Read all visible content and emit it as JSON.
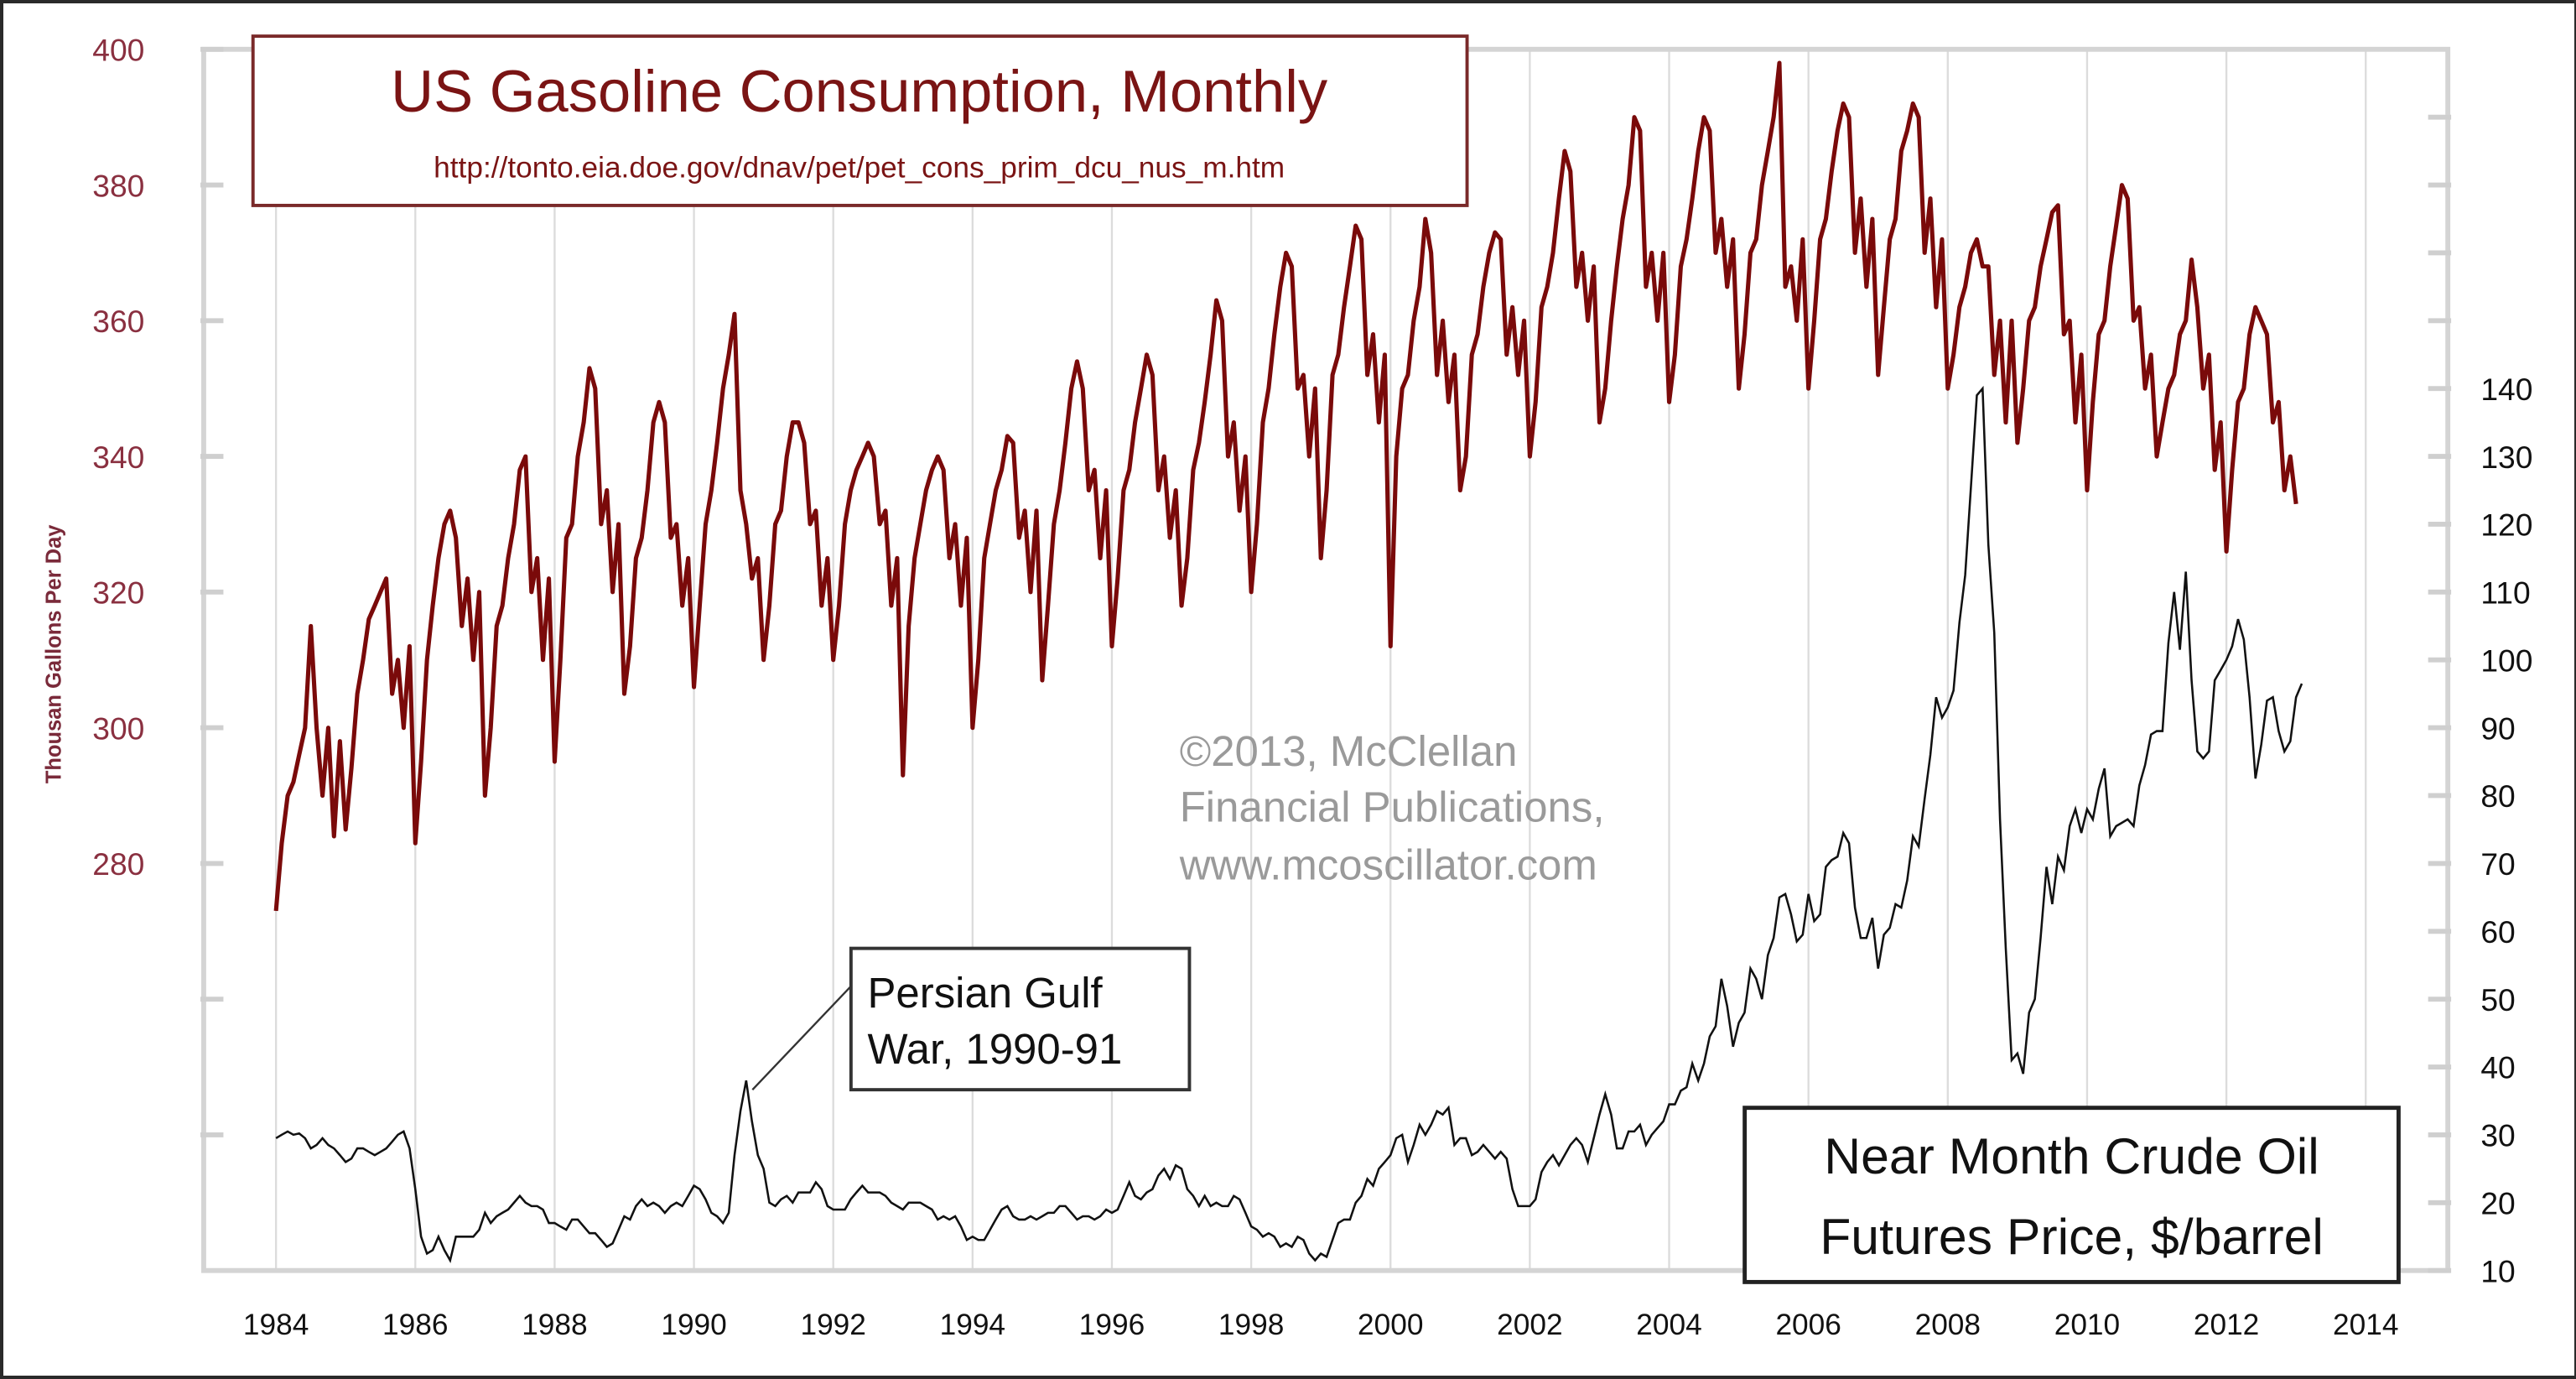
{
  "chart_data": [
    {
      "type": "line",
      "title": "US Gasoline Consumption, Monthly",
      "subtitle": "http://tonto.eia.doe.gov/dnav/pet/pet_cons_prim_dcu_nus_m.htm",
      "ylabel": "Thousan Gallons Per Day",
      "xlabel": "",
      "axis": "left",
      "ylim": [
        220,
        400
      ],
      "yticks": [
        "400",
        "380",
        "360",
        "340",
        "320",
        "300",
        "280"
      ],
      "xlim": [
        1983,
        2015
      ],
      "xticks": [
        "1984",
        "1986",
        "1988",
        "1990",
        "1992",
        "1994",
        "1996",
        "1998",
        "2000",
        "2002",
        "2004",
        "2006",
        "2008",
        "2010",
        "2012",
        "2014"
      ],
      "grid": "vertical",
      "color": "#7a0a0a",
      "start": "1984-01",
      "frequency": "monthly",
      "values": [
        273,
        283,
        290,
        292,
        296,
        300,
        315,
        300,
        290,
        300,
        284,
        298,
        285,
        294,
        305,
        310,
        316,
        318,
        320,
        322,
        305,
        310,
        300,
        312,
        283,
        295,
        310,
        318,
        325,
        330,
        332,
        328,
        315,
        322,
        310,
        320,
        290,
        300,
        315,
        318,
        325,
        330,
        338,
        340,
        320,
        325,
        310,
        322,
        295,
        310,
        328,
        330,
        340,
        345,
        353,
        350,
        330,
        335,
        320,
        330,
        305,
        312,
        325,
        328,
        335,
        345,
        348,
        345,
        328,
        330,
        318,
        325,
        306,
        318,
        330,
        335,
        342,
        350,
        355,
        361,
        335,
        330,
        322,
        325,
        310,
        318,
        330,
        332,
        340,
        345,
        345,
        342,
        330,
        332,
        318,
        325,
        310,
        318,
        330,
        335,
        338,
        340,
        342,
        340,
        330,
        332,
        318,
        325,
        293,
        315,
        325,
        330,
        335,
        338,
        340,
        338,
        325,
        330,
        318,
        328,
        300,
        310,
        325,
        330,
        335,
        338,
        343,
        342,
        328,
        332,
        320,
        332,
        307,
        318,
        330,
        335,
        342,
        350,
        354,
        350,
        335,
        338,
        325,
        335,
        312,
        322,
        335,
        338,
        345,
        350,
        355,
        352,
        335,
        340,
        328,
        335,
        318,
        325,
        338,
        342,
        348,
        355,
        363,
        360,
        340,
        345,
        332,
        340,
        320,
        330,
        345,
        350,
        358,
        365,
        370,
        368,
        350,
        352,
        340,
        350,
        325,
        335,
        352,
        355,
        362,
        368,
        374,
        372,
        352,
        358,
        345,
        355,
        312,
        340,
        350,
        352,
        360,
        365,
        375,
        370,
        352,
        360,
        348,
        355,
        335,
        340,
        355,
        358,
        365,
        370,
        373,
        372,
        355,
        362,
        352,
        360,
        340,
        348,
        362,
        365,
        370,
        378,
        385,
        382,
        365,
        370,
        360,
        368,
        345,
        350,
        360,
        368,
        375,
        380,
        390,
        388,
        365,
        370,
        360,
        370,
        348,
        355,
        368,
        372,
        378,
        385,
        390,
        388,
        370,
        375,
        365,
        372,
        350,
        358,
        370,
        372,
        380,
        385,
        390,
        398,
        365,
        368,
        360,
        372,
        350,
        360,
        372,
        375,
        382,
        388,
        392,
        390,
        370,
        378,
        365,
        375,
        352,
        362,
        372,
        375,
        385,
        388,
        392,
        390,
        370,
        378,
        362,
        372,
        350,
        355,
        362,
        365,
        370,
        372,
        368,
        368,
        352,
        360,
        345,
        360,
        342,
        350,
        360,
        362,
        368,
        372,
        376,
        377,
        358,
        360,
        345,
        355,
        335,
        348,
        358,
        360,
        368,
        374,
        380,
        378,
        360,
        362,
        350,
        355,
        340,
        345,
        350,
        352,
        358,
        360,
        369,
        362,
        350,
        355,
        338,
        345,
        326,
        338,
        348,
        350,
        358,
        362,
        360,
        358,
        345,
        348,
        335,
        340,
        333
      ]
    },
    {
      "type": "line",
      "title": "Near Month Crude Oil Futures Price, $/barrel",
      "title_lines": [
        "Near Month Crude Oil",
        "Futures Price, $/barrel"
      ],
      "axis": "right",
      "ylim": [
        10,
        190
      ],
      "yticks": [
        "140",
        "130",
        "120",
        "110",
        "100",
        "90",
        "80",
        "70",
        "60",
        "50",
        "40",
        "30",
        "20",
        "10"
      ],
      "color": "#111111",
      "start": "1984-01",
      "frequency": "monthly",
      "values": [
        29.5,
        30,
        30.5,
        30,
        30.2,
        29.5,
        28,
        28.5,
        29.5,
        28.5,
        28,
        27,
        26,
        26.5,
        28,
        28,
        27.5,
        27,
        27.5,
        28,
        29,
        30,
        30.5,
        28,
        22,
        15,
        12.5,
        13,
        15,
        13,
        11.5,
        15,
        15,
        15,
        15,
        16,
        18.5,
        17,
        18,
        18.5,
        19,
        20,
        21,
        20,
        19.5,
        19.5,
        19,
        17,
        17,
        16.5,
        16,
        17.5,
        17.5,
        16.5,
        15.5,
        15.5,
        14.5,
        13.5,
        14,
        16,
        18,
        17.5,
        19.5,
        20.5,
        19.5,
        20,
        19.5,
        18.5,
        19.5,
        20,
        19.5,
        21,
        22.5,
        22,
        20.5,
        18.5,
        18,
        17,
        18.5,
        27,
        33.5,
        38,
        32,
        27,
        25,
        20,
        19.5,
        20.5,
        21,
        20,
        21.5,
        21.5,
        21.5,
        23,
        22,
        19.5,
        19,
        19,
        19,
        20.5,
        21.5,
        22.5,
        21.5,
        21.5,
        21.5,
        21,
        20,
        19.5,
        19,
        20,
        20,
        20,
        19.5,
        19,
        17.5,
        18,
        17.5,
        18,
        16.5,
        14.5,
        15,
        14.5,
        14.5,
        16,
        17.5,
        19,
        19.5,
        18,
        17.5,
        17.5,
        18,
        17.5,
        18,
        18.5,
        18.5,
        19.5,
        19.5,
        18.5,
        17.5,
        18,
        18,
        17.5,
        18,
        19,
        18.5,
        19,
        21,
        23,
        21,
        20.5,
        21.5,
        22,
        24,
        25,
        23.5,
        25.5,
        25,
        22,
        21,
        19.5,
        21,
        19.5,
        20,
        19.5,
        19.5,
        21,
        20.5,
        18.5,
        16.5,
        16,
        15,
        15.5,
        15,
        13.5,
        14,
        13.5,
        15,
        14.5,
        12.5,
        11.5,
        12.5,
        12,
        14.5,
        17,
        17.5,
        17.5,
        20,
        21,
        23.5,
        22.5,
        25,
        26,
        27,
        29.5,
        30,
        26,
        28.5,
        31.5,
        30,
        31.5,
        33.5,
        33,
        34,
        28.5,
        29.5,
        29.5,
        27,
        27.5,
        28.5,
        27.5,
        26.5,
        27.5,
        26.5,
        22,
        19.5,
        19.5,
        19.5,
        20.5,
        24.5,
        26,
        27,
        25.5,
        27,
        28.5,
        29.5,
        28.5,
        26,
        29.5,
        33,
        36,
        33,
        28,
        28,
        30.5,
        30.5,
        31.5,
        28.5,
        30,
        31,
        32,
        34.5,
        34.5,
        36.5,
        37,
        40.5,
        38,
        40.5,
        44.5,
        46,
        53,
        49,
        43,
        46.5,
        48,
        54.5,
        53,
        50,
        56.5,
        59,
        65,
        65.5,
        62.5,
        58.5,
        59.5,
        65.5,
        61.5,
        62.5,
        69.5,
        70.5,
        71,
        74.5,
        73,
        63.5,
        59,
        59,
        62,
        54.5,
        59.5,
        60.5,
        64,
        63.5,
        67.5,
        74,
        72.5,
        79.5,
        86,
        94.5,
        91.5,
        93,
        95.5,
        105.5,
        112.5,
        125.5,
        139,
        140,
        117,
        104,
        76.5,
        57.5,
        41,
        42,
        39,
        48,
        50,
        59,
        69.5,
        64,
        71,
        69,
        75.5,
        78,
        74.5,
        78,
        76.5,
        81,
        84,
        74,
        75.5,
        76,
        76.5,
        75.5,
        81.5,
        84.5,
        89,
        89.5,
        89.5,
        102.5,
        110,
        101.5,
        113,
        97,
        86.5,
        85.5,
        86.5,
        97,
        98.5,
        100,
        102,
        106,
        103,
        94.5,
        82.5,
        87.5,
        94,
        94.5,
        89.5,
        86.5,
        88,
        94.5,
        96.5
      ]
    }
  ],
  "annotations": {
    "persian_gulf": [
      "Persian Gulf",
      "War, 1990-91"
    ],
    "watermark": [
      "©2013, McClellan",
      "Financial Publications,",
      "www.mcoscillator.com"
    ]
  }
}
